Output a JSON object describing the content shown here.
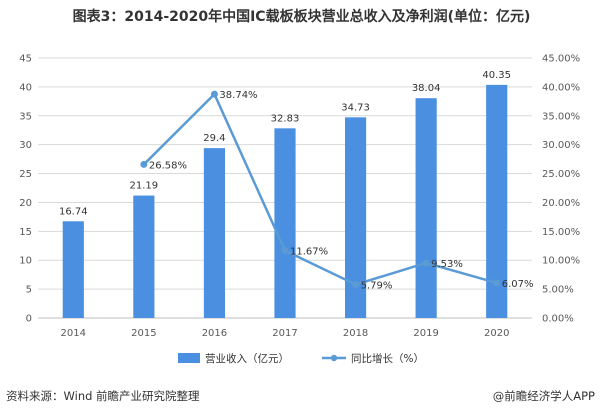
{
  "title": "图表3：2014-2020年中国IC载板板块营业总收入及净利润(单位：亿元)",
  "source": "资料来源：Wind 前瞻产业研究院整理",
  "brand": "@前瞻经济学人APP",
  "colors": {
    "bar": "#4a8fe0",
    "line": "#5b9bd5",
    "grid": "#d9d9d9",
    "axis": "#bfbfbf"
  },
  "chart_data": {
    "type": "bar",
    "categories": [
      "2014",
      "2015",
      "2016",
      "2017",
      "2018",
      "2019",
      "2020"
    ],
    "series": [
      {
        "name": "营业收入（亿元）",
        "type": "bar",
        "axis": "left",
        "values": [
          16.74,
          21.19,
          29.4,
          32.83,
          34.73,
          38.04,
          40.35
        ],
        "labels": [
          "16.74",
          "21.19",
          "29.4",
          "32.83",
          "34.73",
          "38.04",
          "40.35"
        ]
      },
      {
        "name": "同比增长（%）",
        "type": "line",
        "axis": "right",
        "x": [
          "2015",
          "2016",
          "2017",
          "2018",
          "2019",
          "2020"
        ],
        "values": [
          26.58,
          38.74,
          11.67,
          5.79,
          9.53,
          6.07
        ],
        "labels": [
          "26.58%",
          "38.74%",
          "11.67%",
          "5.79%",
          "9.53%",
          "6.07%"
        ]
      }
    ],
    "ylim": [
      0,
      45
    ],
    "yticks": [
      "0",
      "5",
      "10",
      "15",
      "20",
      "25",
      "30",
      "35",
      "40",
      "45"
    ],
    "y2lim": [
      0,
      45
    ],
    "y2ticks": [
      "0.00%",
      "5.00%",
      "10.00%",
      "15.00%",
      "20.00%",
      "25.00%",
      "30.00%",
      "35.00%",
      "40.00%",
      "45.00%"
    ],
    "grid": true,
    "legend": "bottom"
  }
}
